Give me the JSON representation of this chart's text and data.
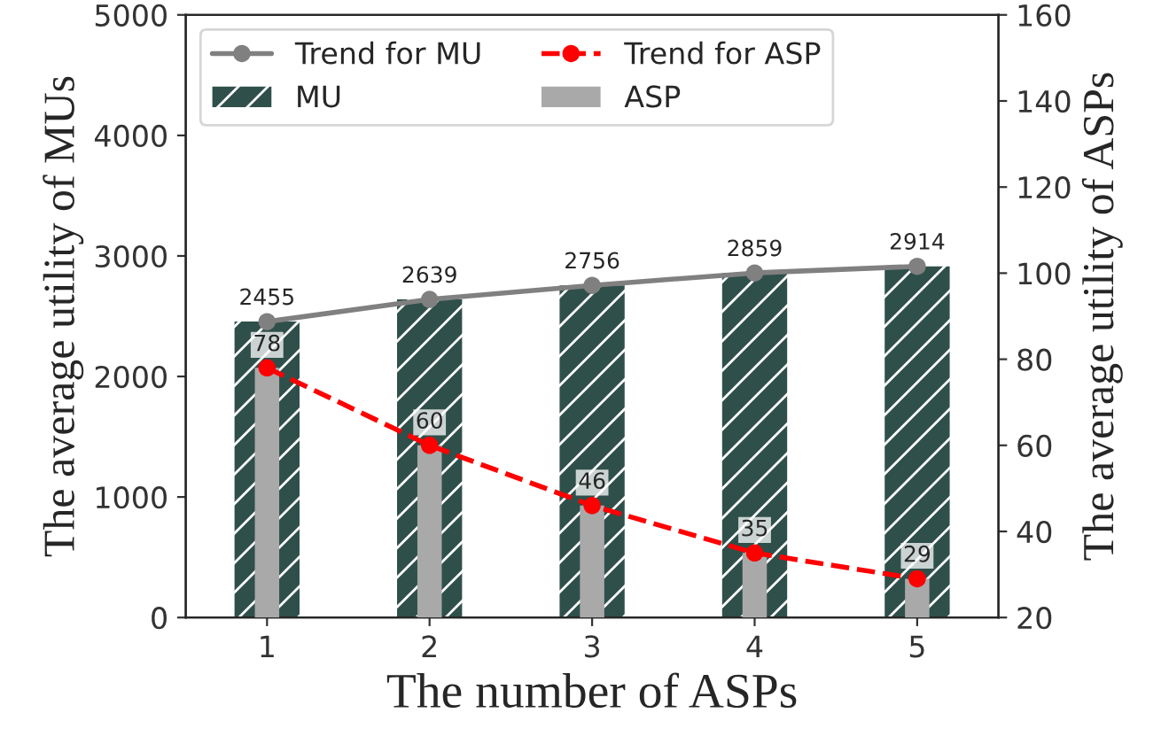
{
  "chart_data": {
    "type": "bar",
    "categories": [
      "1",
      "2",
      "3",
      "4",
      "5"
    ],
    "xlabel": "The number of ASPs",
    "ylabel": "The average utility of MUs",
    "y2label": "The average utility of ASPs",
    "series": [
      {
        "name": "Trend for MU",
        "type": "line",
        "color": "#808080",
        "marker": "circle",
        "line_style": "solid",
        "values": [
          2455,
          2639,
          2756,
          2859,
          2914
        ],
        "value_labels": [
          "2455",
          "2639",
          "2756",
          "2859",
          "2914"
        ]
      },
      {
        "name": "Trend for ASP",
        "type": "line",
        "axis": "y2",
        "color": "#ff0000",
        "marker": "circle",
        "line_style": "dashed",
        "values": [
          78,
          60,
          46,
          35,
          29
        ],
        "value_labels": [
          "78",
          "60",
          "46",
          "35",
          "29"
        ]
      },
      {
        "name": "MU",
        "color": "#2f4f4a",
        "values": [
          2455,
          2639,
          2756,
          2859,
          2914
        ]
      },
      {
        "name": "ASP",
        "axis": "y2",
        "color": "#a9a9a9",
        "values": [
          78,
          60,
          46,
          35,
          29
        ]
      }
    ],
    "ylim": [
      0,
      5000
    ],
    "yticks": [
      0,
      1000,
      2000,
      3000,
      4000,
      5000
    ],
    "y2lim": [
      20,
      160
    ],
    "y2ticks": [
      20,
      40,
      60,
      80,
      100,
      120,
      140,
      160
    ],
    "grid": false,
    "legend": "top left"
  }
}
